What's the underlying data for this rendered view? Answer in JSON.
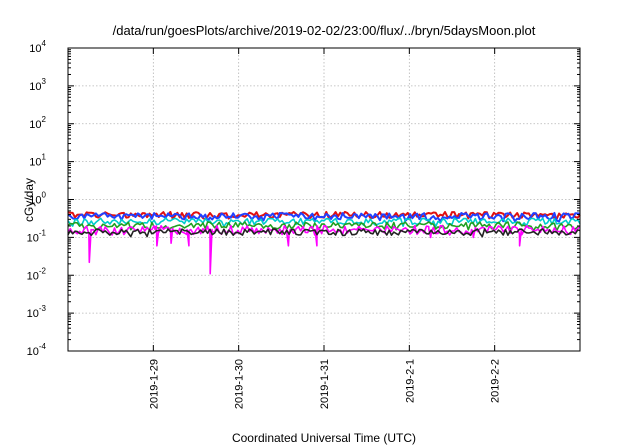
{
  "chart_data": {
    "type": "line",
    "title": "/data/run/goesPlots/archive/2019-02-02/23:00/flux/../bryn/5daysMoon.plot",
    "xlabel": "Coordinated Universal Time (UTC)",
    "ylabel": "cGy/day",
    "yscale": "log",
    "ylim": [
      0.0001,
      10000
    ],
    "yticks": [
      {
        "base": "10",
        "exp": "-4",
        "value": 0.0001
      },
      {
        "base": "10",
        "exp": "-3",
        "value": 0.001
      },
      {
        "base": "10",
        "exp": "-2",
        "value": 0.01
      },
      {
        "base": "10",
        "exp": "-1",
        "value": 0.1
      },
      {
        "base": "10",
        "exp": "0",
        "value": 1
      },
      {
        "base": "10",
        "exp": "1",
        "value": 10
      },
      {
        "base": "10",
        "exp": "2",
        "value": 100
      },
      {
        "base": "10",
        "exp": "3",
        "value": 1000
      },
      {
        "base": "10",
        "exp": "4",
        "value": 10000
      }
    ],
    "xlim": [
      "2019-01-28T00:00",
      "2019-02-03T00:00"
    ],
    "xticks": [
      {
        "label": "2019-1-29",
        "value": "2019-01-29T00:00"
      },
      {
        "label": "2019-1-30",
        "value": "2019-01-30T00:00"
      },
      {
        "label": "2019-1-31",
        "value": "2019-01-31T00:00"
      },
      {
        "label": "2019-2-1",
        "value": "2019-02-01T00:00"
      },
      {
        "label": "2019-2-2",
        "value": "2019-02-02T00:00"
      }
    ],
    "grid": true,
    "legend": "none",
    "series": [
      {
        "color": "#e01010",
        "base": 0.4,
        "jitter": 0.08,
        "dips": []
      },
      {
        "color": "#2040ff",
        "base": 0.37,
        "jitter": 0.08,
        "dips": []
      },
      {
        "color": "#00cccc",
        "base": 0.27,
        "jitter": 0.06,
        "dips": []
      },
      {
        "color": "#20a020",
        "base": 0.21,
        "jitter": 0.05,
        "dips": []
      },
      {
        "color": "#ff00ff",
        "base": 0.16,
        "jitter": 0.05,
        "dips": [
          {
            "t": "2019-01-28T06:00",
            "y": 0.022
          },
          {
            "t": "2019-01-29T01:00",
            "y": 0.06
          },
          {
            "t": "2019-01-29T05:00",
            "y": 0.07
          },
          {
            "t": "2019-01-29T10:00",
            "y": 0.06
          },
          {
            "t": "2019-01-29T16:00",
            "y": 0.011
          },
          {
            "t": "2019-01-30T14:00",
            "y": 0.06
          },
          {
            "t": "2019-01-30T22:00",
            "y": 0.06
          },
          {
            "t": "2019-02-01T06:00",
            "y": 0.1
          },
          {
            "t": "2019-02-01T18:00",
            "y": 0.1
          },
          {
            "t": "2019-02-02T07:00",
            "y": 0.06
          }
        ]
      },
      {
        "color": "#222222",
        "base": 0.14,
        "jitter": 0.03,
        "dips": []
      }
    ]
  }
}
